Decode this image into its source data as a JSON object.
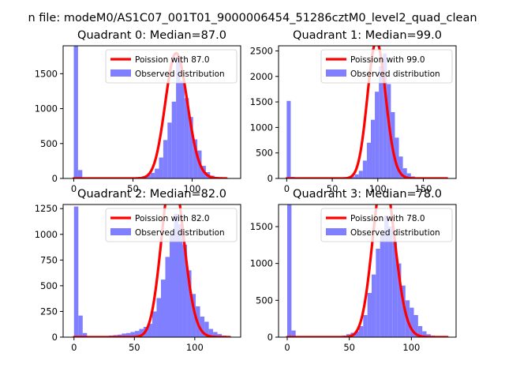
{
  "figure": {
    "suptitle": "n file: modeM0/AS1C07_001T01_9000006454_51286cztM0_level2_quad_clean"
  },
  "colors": {
    "poisson_line": "#ff0000",
    "histogram": "#7f7fff",
    "axes": "#000000"
  },
  "chart_data": [
    {
      "type": "bar",
      "title": "Quadrant 0: Median=87.0",
      "xlabel": "",
      "ylabel": "",
      "xlim": [
        -9,
        141
      ],
      "ylim": [
        0,
        1900
      ],
      "xticks": [
        0,
        50,
        100
      ],
      "yticks": [
        0,
        500,
        1000,
        1500
      ],
      "median": 87.0,
      "legend": [
        "Poission with 87.0",
        "Observed distribution"
      ],
      "legend_position": "upper right",
      "bin_width": 3.6,
      "hist_x": [
        0,
        3.6,
        7.2,
        10.8,
        14.4,
        18,
        21.6,
        25.2,
        28.8,
        32.4,
        36,
        39.6,
        43.2,
        46.8,
        50.4,
        54,
        57.6,
        61.2,
        64.8,
        68.4,
        72,
        75.6,
        79.2,
        82.8,
        86.4,
        90,
        93.6,
        97.2,
        100.8,
        104.4,
        108,
        111.6,
        115.2,
        118.8,
        122.4,
        126
      ],
      "hist_values": [
        1900,
        120,
        10,
        5,
        5,
        5,
        5,
        5,
        5,
        5,
        5,
        5,
        5,
        8,
        10,
        20,
        30,
        50,
        80,
        140,
        300,
        550,
        800,
        1100,
        1750,
        1400,
        1150,
        880,
        560,
        400,
        180,
        90,
        40,
        20,
        10,
        5
      ]
    },
    {
      "type": "bar",
      "title": "Quadrant 1: Median=99.0",
      "xlabel": "",
      "ylabel": "",
      "xlim": [
        -9,
        186
      ],
      "ylim": [
        0,
        2600
      ],
      "xticks": [
        0,
        50,
        100,
        150
      ],
      "yticks": [
        0,
        500,
        1000,
        1500,
        2000,
        2500
      ],
      "median": 99.0,
      "legend": [
        "Poission with 99.0",
        "Observed distribution"
      ],
      "legend_position": "upper right",
      "bin_width": 4.4,
      "hist_x": [
        0,
        4.4,
        8.8,
        13.2,
        17.6,
        22,
        26.4,
        30.8,
        35.2,
        39.6,
        44,
        48.4,
        52.8,
        57.2,
        61.6,
        66,
        70.4,
        74.8,
        79.2,
        83.6,
        88,
        92.4,
        96.8,
        101.2,
        105.6,
        110,
        114.4,
        118.8,
        123.2,
        127.6,
        132,
        136.4,
        140.8,
        145.2,
        149.6,
        154,
        158.4,
        162.8,
        167.2,
        171.6
      ],
      "hist_values": [
        1520,
        30,
        5,
        5,
        5,
        5,
        5,
        5,
        5,
        5,
        5,
        5,
        5,
        8,
        12,
        20,
        40,
        80,
        150,
        350,
        700,
        1150,
        1700,
        2200,
        2450,
        1850,
        1300,
        800,
        430,
        200,
        100,
        40,
        20,
        10,
        5,
        5,
        5,
        5,
        5,
        5
      ]
    },
    {
      "type": "bar",
      "title": "Quadrant 2: Median=82.0",
      "xlabel": "",
      "ylabel": "",
      "xlim": [
        -9,
        138
      ],
      "ylim": [
        0,
        1290
      ],
      "xticks": [
        0,
        50,
        100
      ],
      "yticks": [
        0,
        250,
        500,
        750,
        1000,
        1250
      ],
      "median": 82.0,
      "legend": [
        "Poission with 82.0",
        "Observed distribution"
      ],
      "legend_position": "upper right",
      "bin_width": 3.6,
      "hist_x": [
        0,
        3.6,
        7.2,
        10.8,
        14.4,
        18,
        21.6,
        25.2,
        28.8,
        32.4,
        36,
        39.6,
        43.2,
        46.8,
        50.4,
        54,
        57.6,
        61.2,
        64.8,
        68.4,
        72,
        75.6,
        79.2,
        82.8,
        86.4,
        90,
        93.6,
        97.2,
        100.8,
        104.4,
        108,
        111.6,
        115.2,
        118.8,
        122.4,
        126
      ],
      "hist_values": [
        1270,
        210,
        40,
        10,
        5,
        5,
        5,
        10,
        15,
        20,
        25,
        35,
        40,
        50,
        60,
        80,
        100,
        130,
        250,
        380,
        560,
        780,
        1000,
        1200,
        1100,
        900,
        650,
        420,
        300,
        200,
        150,
        80,
        50,
        30,
        15,
        10
      ]
    },
    {
      "type": "bar",
      "title": "Quadrant 3: Median=78.0",
      "xlabel": "",
      "ylabel": "",
      "xlim": [
        -7,
        136
      ],
      "ylim": [
        0,
        1800
      ],
      "xticks": [
        0,
        50,
        100
      ],
      "yticks": [
        0,
        500,
        1000,
        1500
      ],
      "median": 78.0,
      "legend": [
        "Poission with 78.0",
        "Observed distribution"
      ],
      "legend_position": "upper right",
      "bin_width": 3.4,
      "hist_x": [
        0,
        3.4,
        6.8,
        10.2,
        13.6,
        17,
        20.4,
        23.8,
        27.2,
        30.6,
        34,
        37.4,
        40.8,
        44.2,
        47.6,
        51,
        54.4,
        57.8,
        61.2,
        64.6,
        68,
        71.4,
        74.8,
        78.2,
        81.6,
        85,
        88.4,
        91.8,
        95.2,
        98.6,
        102,
        105.4,
        108.8,
        112.2,
        115.6,
        119,
        122.4,
        125.8
      ],
      "hist_values": [
        1800,
        90,
        10,
        5,
        5,
        5,
        5,
        5,
        5,
        5,
        5,
        5,
        10,
        20,
        40,
        60,
        80,
        150,
        300,
        600,
        850,
        1200,
        1400,
        1650,
        1500,
        1300,
        1000,
        700,
        500,
        400,
        300,
        150,
        80,
        40,
        20,
        10,
        5,
        5
      ]
    }
  ]
}
